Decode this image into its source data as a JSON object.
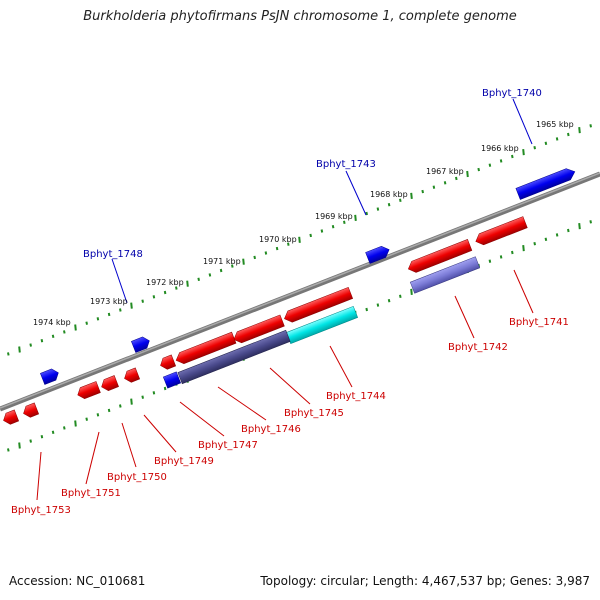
{
  "title": "Burkholderia phytofirmans PsJN chromosome 1, complete genome",
  "footer": {
    "accession": "Accession: NC_010681",
    "summary": "Topology: circular; Length: 4,467,537 bp; Genes: 3,987"
  },
  "colors": {
    "forward_gene": "#0000ee",
    "reverse_gene": "#ee0000",
    "reverse_pseudo_dark": "#4a4a8c",
    "reverse_pseudo_light": "#7b7bd6",
    "highlight": "#00e5e5",
    "backbone": "#888888",
    "tick": "#228b22",
    "forward_label": "#0000aa",
    "reverse_label": "#cc0000"
  },
  "ruler": {
    "tick_labels": [
      "1974 kbp",
      "1973 kbp",
      "1972 kbp",
      "1971 kbp",
      "1970 kbp",
      "1969 kbp",
      "1968 kbp",
      "1967 kbp",
      "1966 kbp",
      "1965 kbp"
    ]
  },
  "genes": [
    {
      "label": "Bphyt_1740",
      "strand": "forward"
    },
    {
      "label": "Bphyt_1741",
      "strand": "reverse"
    },
    {
      "label": "Bphyt_1742",
      "strand": "reverse"
    },
    {
      "label": "Bphyt_1743",
      "strand": "forward"
    },
    {
      "label": "Bphyt_1744",
      "strand": "reverse"
    },
    {
      "label": "Bphyt_1745",
      "strand": "reverse"
    },
    {
      "label": "Bphyt_1746",
      "strand": "reverse"
    },
    {
      "label": "Bphyt_1747",
      "strand": "reverse"
    },
    {
      "label": "Bphyt_1748",
      "strand": "forward"
    },
    {
      "label": "Bphyt_1749",
      "strand": "reverse"
    },
    {
      "label": "Bphyt_1750",
      "strand": "reverse"
    },
    {
      "label": "Bphyt_1751",
      "strand": "reverse"
    },
    {
      "label": "Bphyt_1753",
      "strand": "reverse"
    }
  ]
}
